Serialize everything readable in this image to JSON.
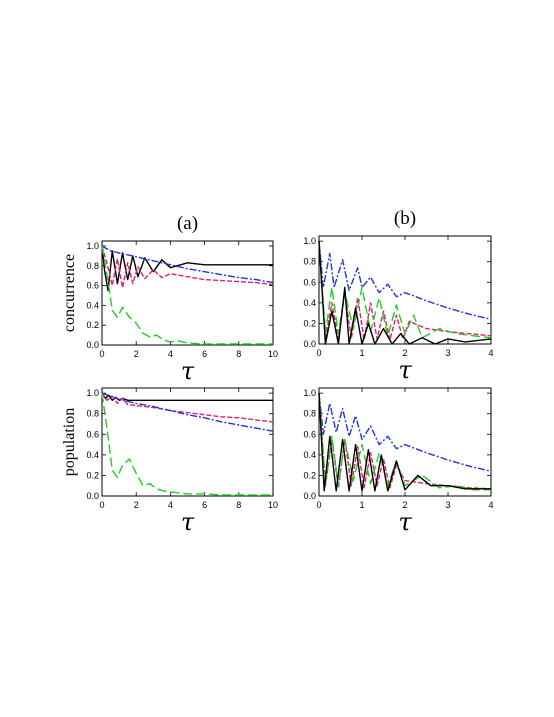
{
  "chart_data": [
    {
      "type": "line",
      "panel": "(a)",
      "ylabel": "concurrence",
      "xlabel": "τ",
      "xlim": [
        0,
        10
      ],
      "ylim": [
        0,
        1.05
      ],
      "xticks": [
        "0",
        "2",
        "4",
        "6",
        "8",
        "10"
      ],
      "yticks": [
        "0.0",
        "0.2",
        "0.4",
        "0.6",
        "0.8",
        "1.0"
      ],
      "series": [
        {
          "color": "#000000",
          "dash": "solid",
          "x": [
            0,
            0.15,
            0.35,
            0.6,
            0.9,
            1.2,
            1.5,
            1.8,
            2.1,
            2.5,
            3.0,
            3.5,
            4.0,
            5.0,
            6.0,
            7.0,
            8.0,
            9.0,
            10.0
          ],
          "y": [
            1.0,
            0.75,
            0.55,
            0.95,
            0.62,
            0.93,
            0.66,
            0.9,
            0.69,
            0.88,
            0.74,
            0.86,
            0.78,
            0.83,
            0.81,
            0.81,
            0.81,
            0.81,
            0.81
          ]
        },
        {
          "color": "#e0206a",
          "dash": "dash-short",
          "x": [
            0,
            0.3,
            0.6,
            0.9,
            1.2,
            1.5,
            1.8,
            2.1,
            2.5,
            3.0,
            3.5,
            4.0,
            5.0,
            6.0,
            7.0,
            8.0,
            9.0,
            10.0
          ],
          "y": [
            1.0,
            0.82,
            0.6,
            0.87,
            0.58,
            0.83,
            0.62,
            0.79,
            0.67,
            0.76,
            0.68,
            0.72,
            0.69,
            0.66,
            0.65,
            0.64,
            0.63,
            0.61
          ]
        },
        {
          "color": "#2233dd",
          "dash": "dash-dot",
          "x": [
            0,
            0.5,
            1,
            2,
            3,
            4,
            5,
            6,
            7,
            8,
            9,
            10
          ],
          "y": [
            1.0,
            0.95,
            0.93,
            0.89,
            0.85,
            0.81,
            0.77,
            0.74,
            0.71,
            0.68,
            0.66,
            0.63
          ]
        },
        {
          "color": "#22cc22",
          "dash": "dash-long",
          "x": [
            0,
            0.3,
            0.6,
            0.9,
            1.2,
            1.6,
            2.0,
            2.4,
            2.8,
            3.2,
            3.6,
            4.0,
            4.5,
            5.0,
            6.0,
            7.0,
            8.0,
            10.0
          ],
          "y": [
            1.0,
            0.7,
            0.35,
            0.28,
            0.38,
            0.28,
            0.22,
            0.12,
            0.08,
            0.1,
            0.05,
            0.03,
            0.04,
            0.02,
            0.01,
            0.01,
            0.01,
            0.01
          ]
        }
      ]
    },
    {
      "type": "line",
      "panel": "(b)",
      "xlabel": "τ",
      "xlim": [
        0,
        4
      ],
      "ylim": [
        0,
        1.05
      ],
      "xticks": [
        "0",
        "1",
        "2",
        "3",
        "4"
      ],
      "yticks": [
        "0.0",
        "0.2",
        "0.4",
        "0.6",
        "0.8",
        "1.0"
      ],
      "series": [
        {
          "color": "#2233dd",
          "dash": "dash-dot",
          "x": [
            0,
            0.1,
            0.25,
            0.35,
            0.55,
            0.7,
            0.9,
            1.0,
            1.2,
            1.4,
            1.6,
            1.8,
            2.0,
            2.5,
            3.0,
            3.5,
            4.0
          ],
          "y": [
            1.0,
            0.55,
            0.88,
            0.55,
            0.82,
            0.52,
            0.74,
            0.55,
            0.65,
            0.5,
            0.58,
            0.46,
            0.5,
            0.42,
            0.35,
            0.29,
            0.24
          ]
        },
        {
          "color": "#e0206a",
          "dash": "dash-short",
          "x": [
            0,
            0.15,
            0.3,
            0.45,
            0.6,
            0.75,
            0.9,
            1.05,
            1.2,
            1.35,
            1.5,
            1.65,
            1.8,
            1.95,
            2.1,
            2.5,
            3.0,
            3.5,
            4.0
          ],
          "y": [
            1.0,
            0.05,
            0.4,
            0.05,
            0.5,
            0.05,
            0.45,
            0.04,
            0.4,
            0.05,
            0.32,
            0.04,
            0.28,
            0.05,
            0.22,
            0.15,
            0.12,
            0.1,
            0.08
          ]
        },
        {
          "color": "#22cc22",
          "dash": "dash-long",
          "x": [
            0,
            0.15,
            0.3,
            0.45,
            0.6,
            0.8,
            1.0,
            1.2,
            1.4,
            1.6,
            1.8,
            2.0,
            2.2,
            2.4,
            2.8,
            3.2,
            3.6,
            4.0
          ],
          "y": [
            1.0,
            0.1,
            0.55,
            0.1,
            0.5,
            0.15,
            0.55,
            0.12,
            0.45,
            0.08,
            0.38,
            0.1,
            0.28,
            0.06,
            0.15,
            0.1,
            0.08,
            0.06
          ]
        },
        {
          "color": "#000000",
          "dash": "solid",
          "x": [
            0,
            0.15,
            0.3,
            0.45,
            0.6,
            0.7,
            0.85,
            1.0,
            1.15,
            1.3,
            1.5,
            1.7,
            1.9,
            2.1,
            2.4,
            2.7,
            3.0,
            3.4,
            4.0
          ],
          "y": [
            1.0,
            0.0,
            0.32,
            0.0,
            0.55,
            0.0,
            0.35,
            0.0,
            0.2,
            0.0,
            0.15,
            0.0,
            0.1,
            0.0,
            0.06,
            0.0,
            0.05,
            0.02,
            0.05
          ]
        }
      ]
    },
    {
      "type": "line",
      "ylabel": "population",
      "xlabel": "τ",
      "xlim": [
        0,
        10
      ],
      "ylim": [
        0,
        1.05
      ],
      "xticks": [
        "0",
        "2",
        "4",
        "6",
        "8",
        "10"
      ],
      "yticks": [
        "0.0",
        "0.2",
        "0.4",
        "0.6",
        "0.8",
        "1.0"
      ],
      "series": [
        {
          "color": "#000000",
          "dash": "solid",
          "x": [
            0,
            0.2,
            0.4,
            0.6,
            0.8,
            1.0,
            1.2,
            1.5,
            2.0,
            3.0,
            4.0,
            6.0,
            8.0,
            10.0
          ],
          "y": [
            1.0,
            0.95,
            0.98,
            0.93,
            0.96,
            0.93,
            0.95,
            0.93,
            0.93,
            0.93,
            0.93,
            0.93,
            0.93,
            0.93
          ]
        },
        {
          "color": "#e0206a",
          "dash": "dash-short",
          "x": [
            0,
            0.3,
            0.6,
            0.9,
            1.2,
            1.5,
            2,
            3,
            4,
            5,
            6,
            7,
            8,
            9,
            10
          ],
          "y": [
            1.0,
            0.93,
            0.97,
            0.9,
            0.95,
            0.89,
            0.88,
            0.86,
            0.83,
            0.81,
            0.79,
            0.77,
            0.76,
            0.74,
            0.72
          ]
        },
        {
          "color": "#2233dd",
          "dash": "dash-dot",
          "x": [
            0,
            0.5,
            1,
            2,
            3,
            4,
            5,
            6,
            7,
            8,
            9,
            10
          ],
          "y": [
            1.0,
            0.97,
            0.94,
            0.9,
            0.87,
            0.83,
            0.79,
            0.76,
            0.72,
            0.69,
            0.66,
            0.63
          ]
        },
        {
          "color": "#22cc22",
          "dash": "dash-long",
          "x": [
            0,
            0.3,
            0.6,
            0.9,
            1.2,
            1.6,
            2.0,
            2.4,
            2.8,
            3.2,
            3.6,
            4.0,
            4.5,
            5.0,
            6.0,
            7.0,
            8.0,
            10.0
          ],
          "y": [
            1.0,
            0.65,
            0.25,
            0.18,
            0.3,
            0.36,
            0.22,
            0.1,
            0.12,
            0.07,
            0.05,
            0.04,
            0.03,
            0.02,
            0.02,
            0.01,
            0.01,
            0.01
          ]
        }
      ]
    },
    {
      "type": "line",
      "xlabel": "τ",
      "xlim": [
        0,
        4
      ],
      "ylim": [
        0,
        1.05
      ],
      "xticks": [
        "0",
        "1",
        "2",
        "3",
        "4"
      ],
      "yticks": [
        "0.0",
        "0.2",
        "0.4",
        "0.6",
        "0.8",
        "1.0"
      ],
      "series": [
        {
          "color": "#2233dd",
          "dash": "dash-dot",
          "x": [
            0,
            0.1,
            0.25,
            0.4,
            0.55,
            0.7,
            0.85,
            1.0,
            1.2,
            1.4,
            1.6,
            1.8,
            2.0,
            2.5,
            3.0,
            3.5,
            4.0
          ],
          "y": [
            1.0,
            0.6,
            0.9,
            0.62,
            0.85,
            0.58,
            0.78,
            0.55,
            0.68,
            0.5,
            0.58,
            0.46,
            0.5,
            0.42,
            0.35,
            0.29,
            0.24
          ]
        },
        {
          "color": "#e0206a",
          "dash": "dash-short",
          "x": [
            0,
            0.15,
            0.3,
            0.45,
            0.6,
            0.75,
            0.9,
            1.05,
            1.2,
            1.35,
            1.5,
            1.65,
            1.8,
            2.0,
            2.5,
            3.0,
            3.5,
            4.0
          ],
          "y": [
            1.0,
            0.1,
            0.55,
            0.08,
            0.55,
            0.1,
            0.48,
            0.08,
            0.42,
            0.1,
            0.36,
            0.08,
            0.3,
            0.15,
            0.12,
            0.1,
            0.08,
            0.07
          ]
        },
        {
          "color": "#22cc22",
          "dash": "dash-long",
          "x": [
            0,
            0.15,
            0.3,
            0.45,
            0.6,
            0.8,
            1.0,
            1.2,
            1.4,
            1.6,
            1.8,
            2.0,
            2.4,
            2.8,
            3.2,
            3.6,
            4.0
          ],
          "y": [
            1.0,
            0.12,
            0.58,
            0.1,
            0.55,
            0.15,
            0.5,
            0.12,
            0.42,
            0.1,
            0.34,
            0.1,
            0.2,
            0.08,
            0.1,
            0.06,
            0.06
          ]
        },
        {
          "color": "#000000",
          "dash": "solid",
          "x": [
            0,
            0.12,
            0.25,
            0.4,
            0.55,
            0.7,
            0.85,
            1.0,
            1.15,
            1.3,
            1.45,
            1.6,
            1.8,
            2.0,
            2.3,
            2.6,
            3.0,
            3.4,
            4.0
          ],
          "y": [
            1.0,
            0.05,
            0.58,
            0.05,
            0.55,
            0.05,
            0.5,
            0.05,
            0.45,
            0.05,
            0.4,
            0.05,
            0.34,
            0.06,
            0.2,
            0.1,
            0.1,
            0.07,
            0.07
          ]
        }
      ]
    }
  ]
}
